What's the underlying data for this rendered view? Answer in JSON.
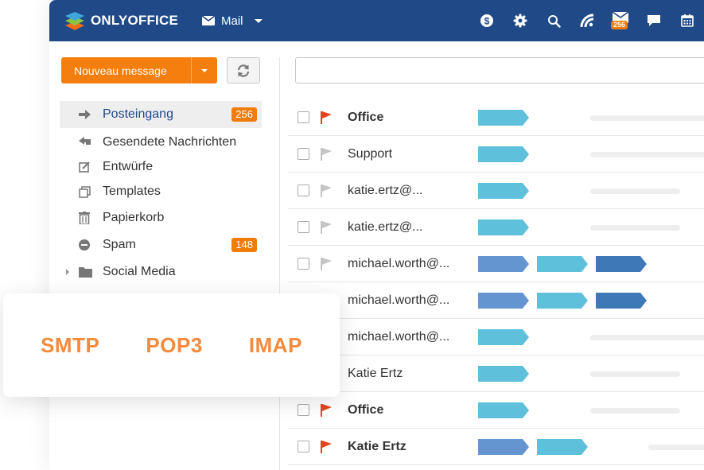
{
  "header": {
    "brand": "ONLYOFFICE",
    "module_label": "Mail",
    "mail_badge": "256",
    "icons": [
      "dollar-icon",
      "gear-icon",
      "search-icon",
      "feed-icon",
      "mail-icon",
      "chat-icon",
      "calendar-icon"
    ]
  },
  "toolbar": {
    "new_message_label": "Nouveau message",
    "search_placeholder": ""
  },
  "sidebar": {
    "folders": [
      {
        "label": "Posteingang",
        "count": "256",
        "icon": "arrow-right-icon",
        "active": true
      },
      {
        "label": "Gesendete Nachrichten",
        "count": "",
        "icon": "reply-icon"
      },
      {
        "label": "Entwürfe",
        "count": "",
        "icon": "edit-icon"
      },
      {
        "label": "Templates",
        "count": "",
        "icon": "templates-icon"
      },
      {
        "label": "Papierkorb",
        "count": "",
        "icon": "trash-icon"
      },
      {
        "label": "Spam",
        "count": "148",
        "icon": "spam-icon"
      },
      {
        "label": "Social Media",
        "count": "",
        "icon": "folder-icon"
      }
    ]
  },
  "messages": [
    {
      "sender": "Office",
      "bold": true,
      "flagged": true
    },
    {
      "sender": "Support",
      "bold": false,
      "flagged": false
    },
    {
      "sender": "katie.ertz@...",
      "bold": false,
      "flagged": false
    },
    {
      "sender": "katie.ertz@...",
      "bold": false,
      "flagged": false
    },
    {
      "sender": "michael.worth@...",
      "bold": false,
      "flagged": false
    },
    {
      "sender": "michael.worth@...",
      "bold": false,
      "flagged": false
    },
    {
      "sender": "michael.worth@...",
      "bold": false,
      "flagged": false
    },
    {
      "sender": "Katie Ertz",
      "bold": false,
      "flagged": false
    },
    {
      "sender": "Office",
      "bold": true,
      "flagged": true
    },
    {
      "sender": "Katie Ertz",
      "bold": true,
      "flagged": true
    }
  ],
  "protocols": {
    "smtp": "SMTP",
    "pop3": "POP3",
    "imap": "IMAP"
  },
  "colors": {
    "header_bg": "#1f4a87",
    "accent_orange": "#f47f0e",
    "tag_light": "#5fc0dc",
    "tag_mid": "#6495d1",
    "tag_dark": "#3f79b5",
    "flag_red": "#e2441e",
    "flag_gray": "#c5c5c5",
    "protocol_text": "#f38a3c"
  }
}
